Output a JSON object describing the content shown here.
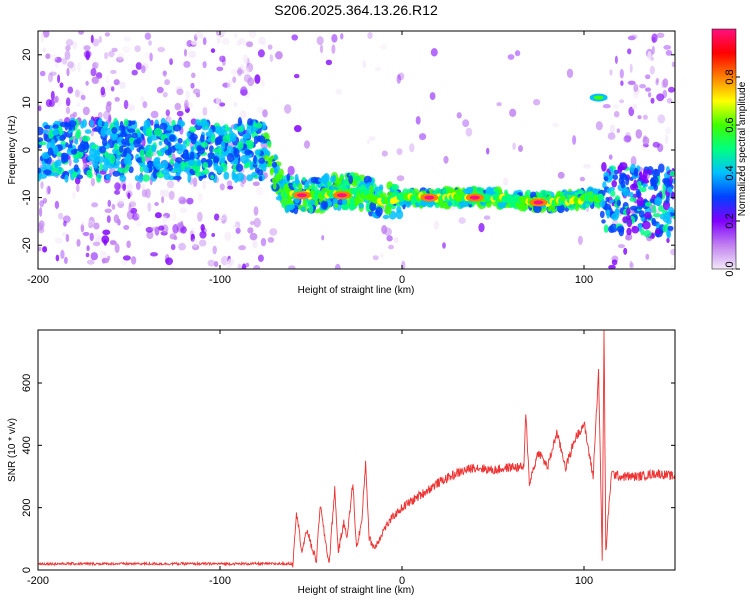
{
  "title": "S206.2025.364.13.26.R12",
  "chart_data": [
    {
      "type": "heatmap",
      "xlabel": "Height of straight line (km)",
      "ylabel": "Frequency (Hz)",
      "xlim": [
        -200,
        150
      ],
      "ylim": [
        -25,
        25
      ],
      "x_ticks": [
        "-200",
        "-100",
        "0",
        "100"
      ],
      "y_ticks": [
        "-20",
        "-10",
        "0",
        "10",
        "20"
      ],
      "colorbar": {
        "label": "Normalized spectral amplitude",
        "range": [
          0,
          1
        ],
        "ticks": [
          "0.0",
          "0.2",
          "0.4",
          "0.6",
          "0.8"
        ],
        "colors": [
          "#f3e8f8",
          "#c080f0",
          "#8000ff",
          "#0040ff",
          "#00c0ff",
          "#00ff80",
          "#40ff00",
          "#ffff00",
          "#ff8000",
          "#ff0000",
          "#ff1080"
        ]
      },
      "ridge": [
        {
          "x": -200,
          "y": 0
        },
        {
          "x": -150,
          "y": 0
        },
        {
          "x": -100,
          "y": 0
        },
        {
          "x": -75,
          "y": 0
        },
        {
          "x": -65,
          "y": -9
        },
        {
          "x": -50,
          "y": -9.5
        },
        {
          "x": -35,
          "y": -9
        },
        {
          "x": -25,
          "y": -8.5
        },
        {
          "x": -10,
          "y": -11
        },
        {
          "x": 0,
          "y": -10
        },
        {
          "x": 50,
          "y": -10
        },
        {
          "x": 80,
          "y": -11
        },
        {
          "x": 110,
          "y": -10
        },
        {
          "x": 150,
          "y": -11
        }
      ],
      "hotspots": [
        {
          "x": -55,
          "y": -9.5,
          "value": 0.95
        },
        {
          "x": -33,
          "y": -9.5,
          "value": 0.95
        },
        {
          "x": 15,
          "y": -10,
          "value": 0.95
        },
        {
          "x": 40,
          "y": -10,
          "value": 0.95
        },
        {
          "x": 75,
          "y": -11,
          "value": 0.95
        },
        {
          "x": 108,
          "y": 11,
          "value": 0.6
        }
      ]
    },
    {
      "type": "line",
      "xlabel": "Height of straight line (km)",
      "ylabel": "SNR (10 * v/v)",
      "xlim": [
        -200,
        150
      ],
      "ylim": [
        0,
        770
      ],
      "x_ticks": [
        "-200",
        "-100",
        "0",
        "100"
      ],
      "y_ticks": [
        "0",
        "200",
        "400",
        "600"
      ],
      "color": "#ee3333",
      "series": [
        {
          "x": [
            -200,
            -150,
            -100,
            -60,
            -58,
            -55,
            -52,
            -50,
            -47,
            -45,
            -42,
            -40,
            -37,
            -35,
            -32,
            -30,
            -27,
            -25,
            -22,
            -20,
            -18,
            -15,
            -10,
            -5,
            0,
            10,
            20,
            30,
            40,
            50,
            60,
            67,
            68,
            70,
            75,
            80,
            85,
            90,
            95,
            100,
            105,
            108,
            110,
            111,
            112,
            115,
            120,
            130,
            140,
            150
          ],
          "y": [
            20,
            20,
            20,
            20,
            190,
            60,
            130,
            80,
            30,
            210,
            90,
            20,
            260,
            60,
            150,
            110,
            280,
            70,
            160,
            345,
            100,
            70,
            130,
            170,
            200,
            240,
            280,
            310,
            330,
            320,
            330,
            330,
            500,
            280,
            380,
            330,
            440,
            330,
            420,
            470,
            300,
            640,
            40,
            770,
            60,
            310,
            300,
            300,
            310,
            300
          ]
        }
      ]
    }
  ]
}
